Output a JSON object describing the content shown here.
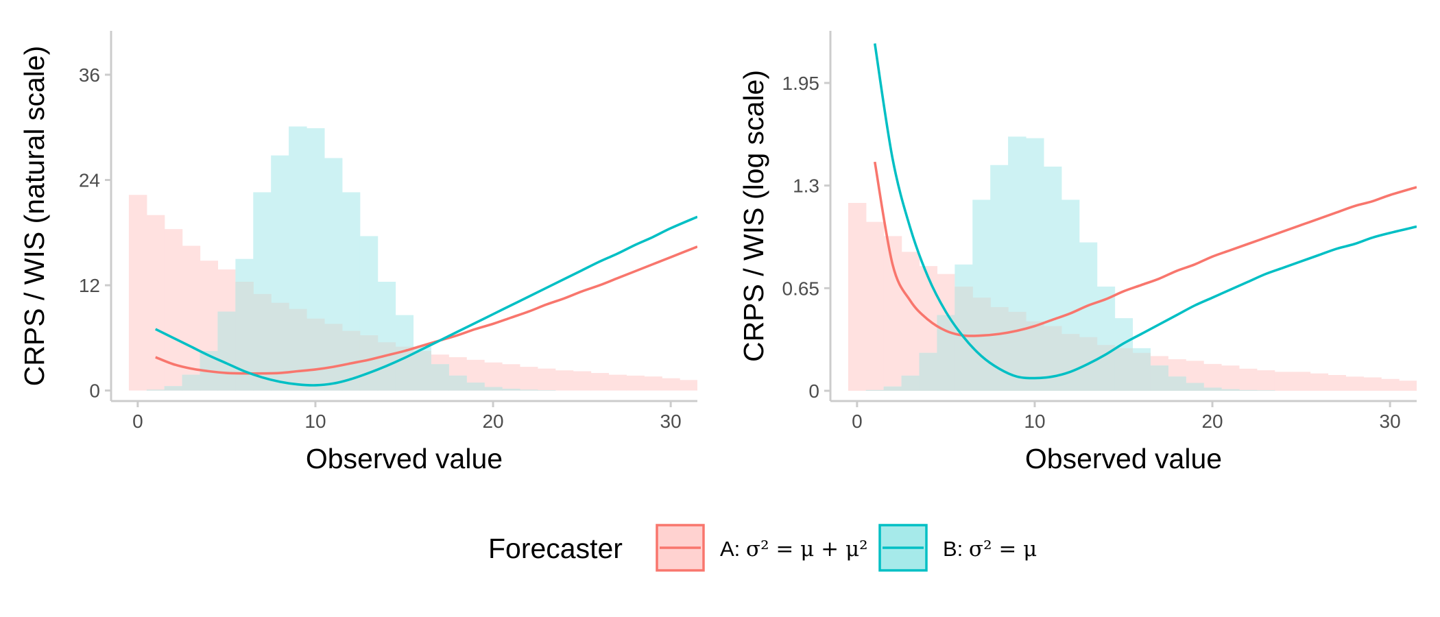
{
  "chart_data": [
    {
      "type": "bar+line",
      "panel": "left",
      "xlabel": "Observed value",
      "ylabel": "CRPS / WIS (natural scale)",
      "xlim": [
        -1.5,
        31.5
      ],
      "ylim": [
        -1.2,
        41
      ],
      "xticks": [
        0,
        10,
        20,
        30
      ],
      "yticks": [
        0,
        12,
        24,
        36
      ],
      "ytick_labels": [
        "0",
        "12",
        "24",
        "36"
      ],
      "y_scale": "linear",
      "grid": false,
      "histograms": [
        {
          "name": "A",
          "bin_width": 1,
          "bin_centers": [
            0,
            1,
            2,
            3,
            4,
            5,
            6,
            7,
            8,
            9,
            10,
            11,
            12,
            13,
            14,
            15,
            16,
            17,
            18,
            19,
            20,
            21,
            22,
            23,
            24,
            25,
            26,
            27,
            28,
            29,
            30,
            31
          ],
          "values": [
            22.3,
            20.0,
            18.4,
            16.5,
            14.8,
            13.8,
            12.4,
            11.0,
            10.0,
            9.3,
            8.2,
            7.6,
            6.8,
            6.3,
            5.5,
            5.0,
            4.5,
            4.1,
            3.8,
            3.5,
            3.2,
            3.0,
            2.7,
            2.5,
            2.3,
            2.2,
            2.0,
            1.8,
            1.7,
            1.6,
            1.4,
            1.2
          ]
        },
        {
          "name": "B",
          "bin_width": 1,
          "bin_centers": [
            0,
            1,
            2,
            3,
            4,
            5,
            6,
            7,
            8,
            9,
            10,
            11,
            12,
            13,
            14,
            15,
            16,
            17,
            18,
            19,
            20,
            21,
            22,
            23,
            24,
            25,
            26,
            27,
            28,
            29,
            30,
            31
          ],
          "values": [
            0.0,
            0.1,
            0.5,
            1.8,
            4.5,
            9.0,
            15.0,
            22.6,
            26.8,
            30.1,
            29.9,
            26.5,
            22.6,
            17.6,
            12.4,
            8.6,
            5.0,
            3.0,
            1.7,
            0.9,
            0.4,
            0.2,
            0.1,
            0.05,
            0.0,
            0.0,
            0.0,
            0.0,
            0.0,
            0.0,
            0.0,
            0.0
          ]
        }
      ],
      "series": [
        {
          "name": "A",
          "x": [
            1,
            2,
            3,
            4,
            5,
            6,
            7,
            8,
            9,
            10,
            11,
            12,
            13,
            14,
            15,
            16,
            17,
            18,
            19,
            20,
            21,
            22,
            23,
            24,
            25,
            26,
            27,
            28,
            29,
            30,
            31.5
          ],
          "values": [
            3.8,
            3.0,
            2.5,
            2.2,
            2.0,
            1.95,
            1.95,
            2.0,
            2.2,
            2.4,
            2.7,
            3.1,
            3.5,
            4.0,
            4.5,
            5.1,
            5.7,
            6.3,
            7.0,
            7.6,
            8.3,
            9.0,
            9.8,
            10.5,
            11.3,
            12.0,
            12.8,
            13.6,
            14.4,
            15.2,
            16.4
          ]
        },
        {
          "name": "B",
          "x": [
            1,
            2,
            3,
            4,
            5,
            6,
            7,
            8,
            9,
            10,
            11,
            12,
            13,
            14,
            15,
            16,
            17,
            18,
            19,
            20,
            21,
            22,
            23,
            24,
            25,
            26,
            27,
            28,
            29,
            30,
            31.5
          ],
          "values": [
            7.0,
            6.0,
            5.0,
            4.0,
            3.1,
            2.2,
            1.5,
            1.0,
            0.7,
            0.6,
            0.8,
            1.3,
            2.0,
            2.8,
            3.7,
            4.7,
            5.7,
            6.7,
            7.7,
            8.7,
            9.7,
            10.7,
            11.7,
            12.7,
            13.7,
            14.7,
            15.6,
            16.6,
            17.5,
            18.5,
            19.8
          ]
        }
      ]
    },
    {
      "type": "bar+line",
      "panel": "right",
      "xlabel": "Observed value",
      "ylabel": "CRPS / WIS (log scale)",
      "xlim": [
        -1.5,
        31.5
      ],
      "ylim": [
        -0.065,
        2.28
      ],
      "xticks": [
        0,
        10,
        20,
        30
      ],
      "yticks": [
        0,
        0.65,
        1.3,
        1.95
      ],
      "ytick_labels": [
        "0",
        "0.65",
        "1.3",
        "1.95"
      ],
      "y_scale": "linear",
      "grid": false,
      "histograms": [
        {
          "name": "A",
          "bin_width": 1,
          "bin_centers": [
            0,
            1,
            2,
            3,
            4,
            5,
            6,
            7,
            8,
            9,
            10,
            11,
            12,
            13,
            14,
            15,
            16,
            17,
            18,
            19,
            20,
            21,
            22,
            23,
            24,
            25,
            26,
            27,
            28,
            29,
            30,
            31
          ],
          "values": [
            1.19,
            1.07,
            0.98,
            0.88,
            0.79,
            0.74,
            0.66,
            0.59,
            0.53,
            0.5,
            0.44,
            0.41,
            0.36,
            0.34,
            0.29,
            0.27,
            0.24,
            0.22,
            0.2,
            0.19,
            0.17,
            0.16,
            0.14,
            0.13,
            0.12,
            0.12,
            0.11,
            0.1,
            0.09,
            0.085,
            0.075,
            0.064
          ]
        },
        {
          "name": "B",
          "bin_width": 1,
          "bin_centers": [
            0,
            1,
            2,
            3,
            4,
            5,
            6,
            7,
            8,
            9,
            10,
            11,
            12,
            13,
            14,
            15,
            16,
            17,
            18,
            19,
            20,
            21,
            22,
            23,
            24,
            25,
            26,
            27,
            28,
            29,
            30,
            31
          ],
          "values": [
            0.0,
            0.005,
            0.027,
            0.096,
            0.24,
            0.48,
            0.8,
            1.21,
            1.43,
            1.61,
            1.6,
            1.42,
            1.21,
            0.94,
            0.66,
            0.46,
            0.27,
            0.16,
            0.09,
            0.05,
            0.02,
            0.01,
            0.005,
            0.003,
            0.0,
            0.0,
            0.0,
            0.0,
            0.0,
            0.0,
            0.0,
            0.0
          ]
        }
      ],
      "series": [
        {
          "name": "A",
          "x": [
            1,
            2,
            3,
            4,
            5,
            6,
            7,
            8,
            9,
            10,
            11,
            12,
            13,
            14,
            15,
            16,
            17,
            18,
            19,
            20,
            21,
            22,
            23,
            24,
            25,
            26,
            27,
            28,
            29,
            30,
            31.5
          ],
          "values": [
            1.45,
            0.8,
            0.57,
            0.45,
            0.38,
            0.35,
            0.35,
            0.36,
            0.38,
            0.41,
            0.45,
            0.49,
            0.54,
            0.58,
            0.63,
            0.67,
            0.71,
            0.76,
            0.8,
            0.85,
            0.89,
            0.93,
            0.97,
            1.01,
            1.05,
            1.09,
            1.13,
            1.17,
            1.2,
            1.24,
            1.29
          ]
        },
        {
          "name": "B",
          "x": [
            1,
            2,
            3,
            4,
            5,
            6,
            7,
            8,
            9,
            10,
            11,
            12,
            13,
            14,
            15,
            16,
            17,
            18,
            19,
            20,
            21,
            22,
            23,
            24,
            25,
            26,
            27,
            28,
            29,
            30,
            31.5
          ],
          "values": [
            2.2,
            1.47,
            1.03,
            0.72,
            0.5,
            0.34,
            0.22,
            0.14,
            0.09,
            0.08,
            0.09,
            0.12,
            0.17,
            0.23,
            0.3,
            0.36,
            0.42,
            0.48,
            0.54,
            0.59,
            0.64,
            0.69,
            0.74,
            0.78,
            0.82,
            0.86,
            0.9,
            0.93,
            0.97,
            1.0,
            1.04
          ]
        }
      ]
    }
  ],
  "legend": {
    "title": "Forecaster",
    "items": [
      {
        "name": "A",
        "prefix": "A: ",
        "formula": "σ² = μ + μ²",
        "color": "#F8766D",
        "fill": "#FFD2D0"
      },
      {
        "name": "B",
        "prefix": "B: ",
        "formula": "σ² = μ",
        "color": "#00BFC4",
        "fill": "#A6EAEA"
      }
    ]
  },
  "colors": {
    "A_line": "#F8766D",
    "A_fill": "#FFE1E0",
    "B_line": "#00BFC4",
    "B_fill": "#CDF2F3",
    "overlap_fill": "#D3E3E1",
    "axis": "#cccccc"
  }
}
